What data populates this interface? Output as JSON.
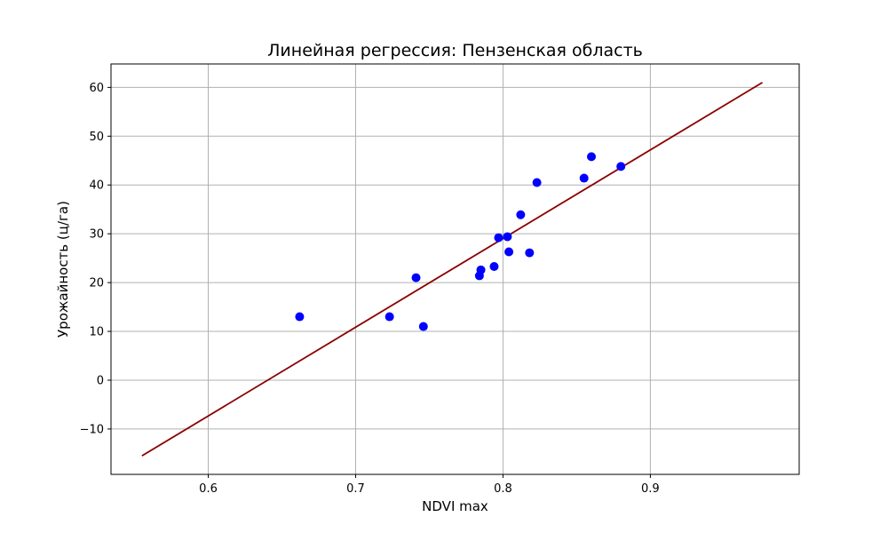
{
  "chart_data": {
    "type": "scatter",
    "title": "Линейная регрессия: Пензенская область",
    "xlabel": "NDVI max",
    "ylabel": "Урожайность (ц/га)",
    "xlim": [
      0.534,
      1.001
    ],
    "ylim": [
      -19.3,
      64.8
    ],
    "xticks": [
      0.6,
      0.7,
      0.8,
      0.9
    ],
    "xtick_labels": [
      "0.6",
      "0.7",
      "0.8",
      "0.9"
    ],
    "yticks": [
      -10,
      0,
      10,
      20,
      30,
      40,
      50,
      60
    ],
    "ytick_labels": [
      "−10",
      "0",
      "10",
      "20",
      "30",
      "40",
      "50",
      "60"
    ],
    "grid": true,
    "colors": {
      "points": "#0000ff",
      "line": "#8b0000",
      "grid": "#b0b0b0"
    },
    "points": [
      {
        "x": 0.662,
        "y": 13.0
      },
      {
        "x": 0.723,
        "y": 13.0
      },
      {
        "x": 0.741,
        "y": 21.0
      },
      {
        "x": 0.746,
        "y": 11.0
      },
      {
        "x": 0.784,
        "y": 21.4
      },
      {
        "x": 0.785,
        "y": 22.6
      },
      {
        "x": 0.794,
        "y": 23.3
      },
      {
        "x": 0.797,
        "y": 29.2
      },
      {
        "x": 0.803,
        "y": 29.4
      },
      {
        "x": 0.804,
        "y": 26.3
      },
      {
        "x": 0.812,
        "y": 33.9
      },
      {
        "x": 0.818,
        "y": 26.1
      },
      {
        "x": 0.823,
        "y": 40.5
      },
      {
        "x": 0.855,
        "y": 41.4
      },
      {
        "x": 0.86,
        "y": 45.8
      },
      {
        "x": 0.88,
        "y": 43.8
      }
    ],
    "regression_line": [
      {
        "x": 0.555,
        "y": -15.5
      },
      {
        "x": 0.976,
        "y": 61.0
      }
    ]
  }
}
